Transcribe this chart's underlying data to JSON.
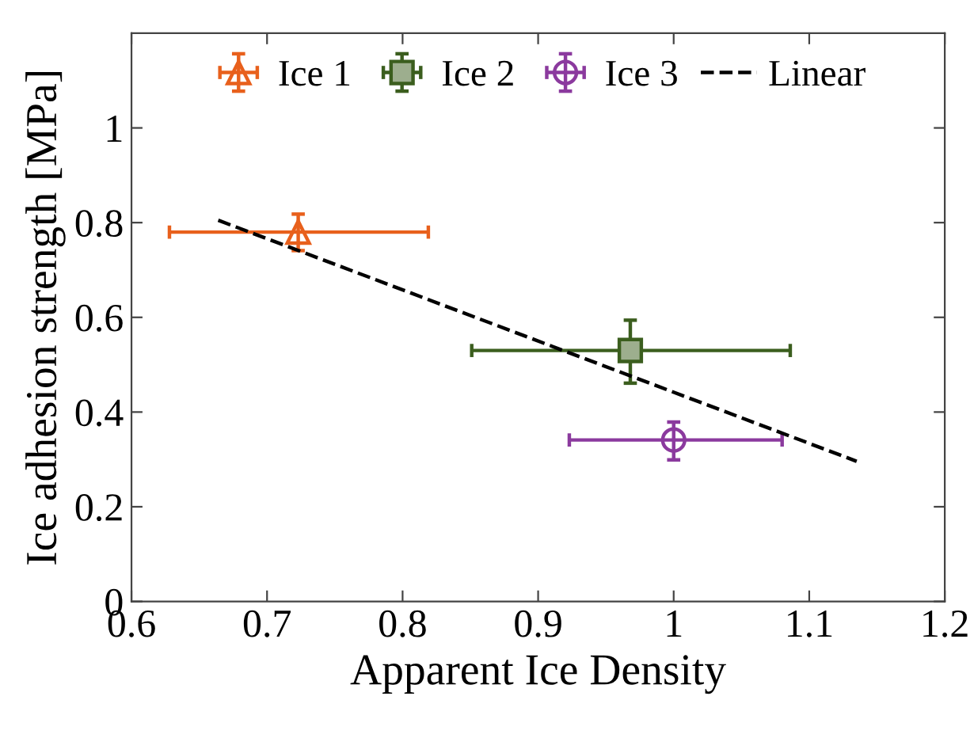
{
  "chart_data": {
    "type": "scatter",
    "xlabel": "Apparent Ice Density",
    "ylabel": "Ice adhesion strength [MPa]",
    "xlim": [
      0.6,
      1.2
    ],
    "xticks": [
      0.6,
      0.7,
      0.8,
      0.9,
      1,
      1.1,
      1.2
    ],
    "ylim": [
      0,
      1.2
    ],
    "yticks": [
      0,
      0.2,
      0.4,
      0.6,
      0.8,
      1
    ],
    "grid": false,
    "legend": "top",
    "series": [
      {
        "name": "Ice 1",
        "color": "#e8601c",
        "marker": "triangle",
        "x": [
          0.723
        ],
        "values": [
          0.78
        ],
        "errors": [
          [
            0.741,
            0.818
          ]
        ],
        "xerrors": [
          [
            0.628,
            0.819
          ]
        ]
      },
      {
        "name": "Ice 2",
        "color": "#3b5e1e",
        "marker": "square",
        "x": [
          0.968
        ],
        "values": [
          0.53
        ],
        "errors": [
          [
            0.461,
            0.594
          ]
        ],
        "xerrors": [
          [
            0.851,
            1.086
          ]
        ]
      },
      {
        "name": "Ice 3",
        "color": "#8b3a9e",
        "marker": "circle",
        "x": [
          1.0
        ],
        "values": [
          0.341
        ],
        "errors": [
          [
            0.299,
            0.379
          ]
        ],
        "xerrors": [
          [
            0.923,
            1.08
          ]
        ]
      },
      {
        "name": "Linear",
        "type": "line",
        "color": "#000000",
        "line_style": "dashed",
        "marker": "none",
        "x": [
          0.664,
          1.135
        ],
        "values": [
          0.805,
          0.296
        ]
      }
    ]
  }
}
